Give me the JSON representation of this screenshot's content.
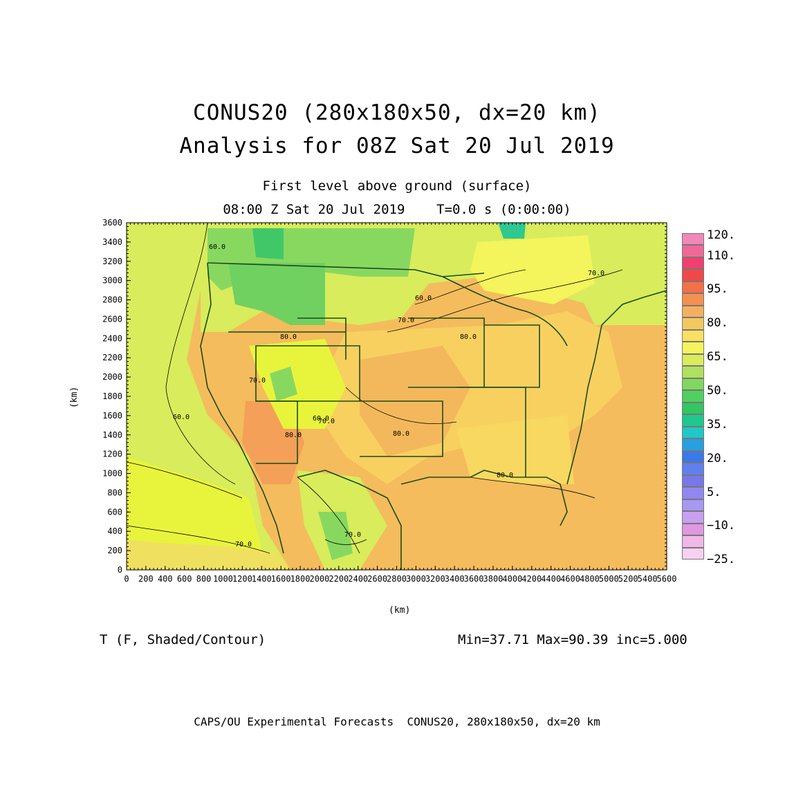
{
  "title": {
    "line1": "CONUS20 (280x180x50, dx=20 km)",
    "line2": "Analysis for 08Z Sat 20 Jul 2019"
  },
  "subtitle": {
    "level": "First level above ground (surface)",
    "time": "08:00 Z Sat 20 Jul 2019    T=0.0 s (0:00:00)"
  },
  "axes": {
    "x_unit": "(km)",
    "y_unit": "(km)",
    "x_ticks": [
      0,
      200,
      400,
      600,
      800,
      1000,
      1200,
      1400,
      1600,
      1800,
      2000,
      2200,
      2400,
      2600,
      2800,
      3000,
      3200,
      3400,
      3600,
      3800,
      4000,
      4200,
      4400,
      4600,
      4800,
      5000,
      5200,
      5400,
      5600
    ],
    "y_ticks": [
      0,
      200,
      400,
      600,
      800,
      1000,
      1200,
      1400,
      1600,
      1800,
      2000,
      2200,
      2400,
      2600,
      2800,
      3000,
      3200,
      3400,
      3600
    ],
    "xlim": [
      0,
      5600
    ],
    "ylim": [
      0,
      3600
    ]
  },
  "field": {
    "variable": "T (F, Shaded/Contour)",
    "stats": "Min=37.71 Max=90.39 inc=5.000"
  },
  "contour_labels": [
    "70.0",
    "70.0",
    "60.0",
    "60.0",
    "70.0",
    "80.0",
    "60.0",
    "70.0",
    "80.0",
    "80.0",
    "70.0",
    "70.0",
    "60.0",
    "80.0",
    "80.0"
  ],
  "colorbar": {
    "colors": [
      "#f8d0f0",
      "#f0b8e8",
      "#e098e0",
      "#c8a0f0",
      "#a898f0",
      "#9088f0",
      "#7878e8",
      "#6080f0",
      "#3c78e8",
      "#28a0e0",
      "#20c8c8",
      "#20c890",
      "#30c860",
      "#50d060",
      "#80d860",
      "#b0e060",
      "#d8ec5c",
      "#f4f45c",
      "#f8e060",
      "#f4c860",
      "#f4b060",
      "#f49050",
      "#f47048",
      "#f04848",
      "#f04070",
      "#f06898",
      "#f088b8"
    ],
    "labels": [
      "120.",
      "110.",
      "95.",
      "80.",
      "65.",
      "50.",
      "35.",
      "20.",
      "5.",
      "−10.",
      "−25."
    ]
  },
  "footer": "CAPS/OU Experimental Forecasts  CONUS20, 280x180x50, dx=20 km"
}
